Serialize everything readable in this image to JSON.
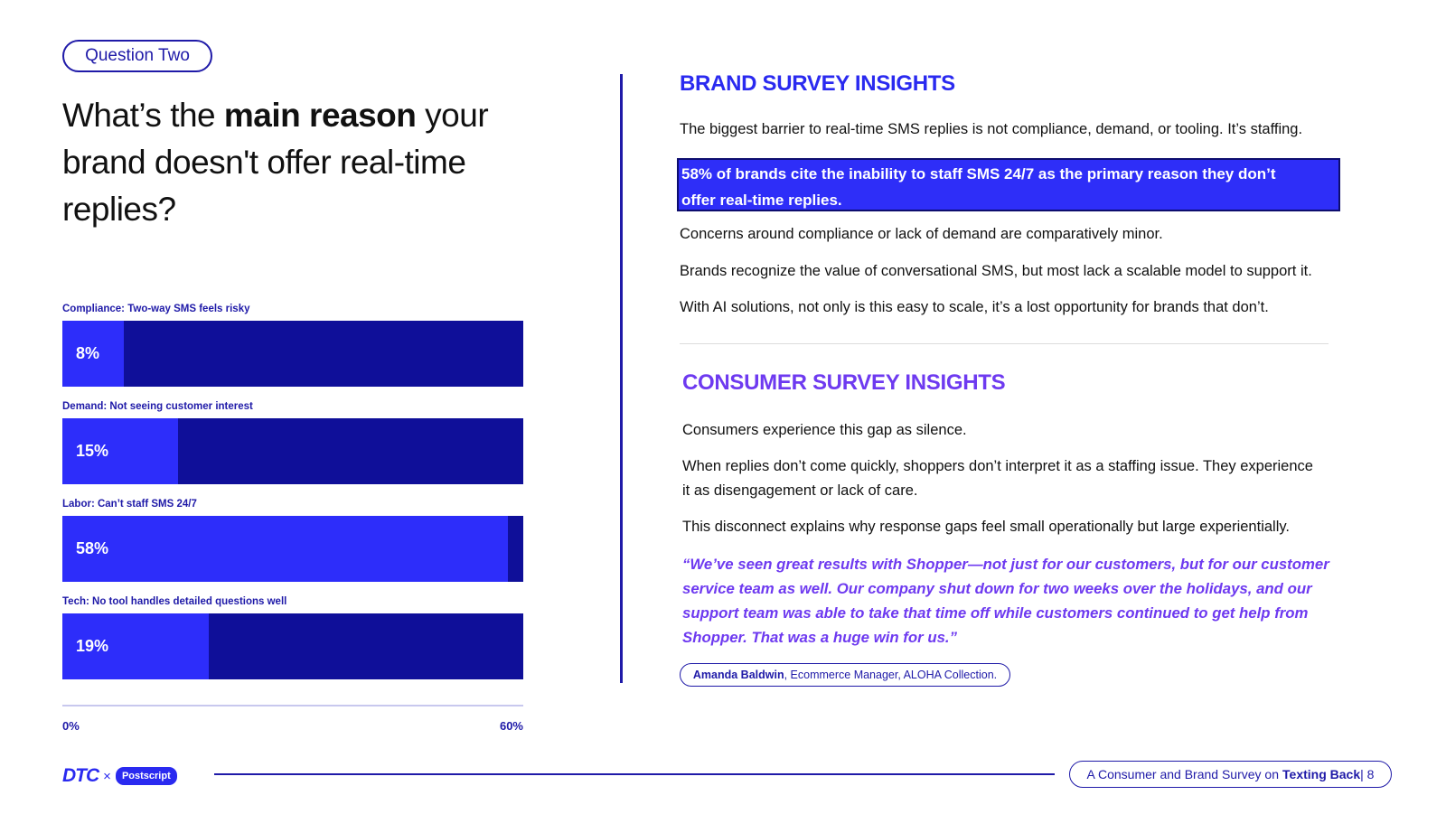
{
  "question": {
    "pill": "Question Two",
    "text_before": "What’s the ",
    "text_bold": "main reason",
    "text_after": " your brand doesn't offer real-time replies?"
  },
  "chart_data": {
    "type": "bar",
    "orientation": "horizontal",
    "categories": [
      "Compliance: Two-way SMS feels risky",
      "Demand: Not seeing customer interest",
      "Labor: Can’t staff SMS 24/7",
      "Tech: No tool handles detailed questions well"
    ],
    "values": [
      8,
      15,
      58,
      19
    ],
    "value_labels": [
      "8%",
      "15%",
      "58%",
      "19%"
    ],
    "xlim": [
      0,
      60
    ],
    "x_tick_labels": [
      "0%",
      "60%"
    ],
    "title": "",
    "xlabel": "",
    "ylabel": "",
    "grid": false
  },
  "brand": {
    "heading": "BRAND SURVEY INSIGHTS",
    "paragraph1": "The biggest barrier to real-time SMS replies is not compliance, demand, or tooling. It’s staffing.",
    "highlight_line1": "58% of brands cite the inability to staff SMS 24/7 as the primary reason they don’t",
    "highlight_line2": "offer real-time replies.",
    "paragraph2": "Concerns around compliance or lack of demand are comparatively minor.",
    "paragraph3": "Brands recognize the value of conversational SMS, but most lack a scalable model to support it.",
    "paragraph4": "With AI solutions, not only is this easy to scale, it’s a lost opportunity for brands that don’t."
  },
  "consumer": {
    "heading": "CONSUMER SURVEY INSIGHTS",
    "paragraph1": "Consumers experience this gap as silence.",
    "paragraph2_line1": "When replies don’t come quickly, shoppers don’t interpret it as a staffing issue. They experience",
    "paragraph2_line2": "it as disengagement or lack of care.",
    "paragraph3": "This disconnect explains why response gaps feel small operationally but large experientially.",
    "quote": "“We’ve seen great results with Shopper—not just for our customers, but for our customer service team as well. Our company shut down for two weeks over the holidays, and our support team was able to take that time off while customers continued to get help from Shopper. That was a huge win for us.”",
    "attribution_name": "Amanda Baldwin",
    "attribution_role": ", Ecommerce Manager, ALOHA Collection."
  },
  "footer": {
    "logo_dtc": "DTC",
    "logo_x": "×",
    "logo_postscript": "Postscript",
    "pill_text": "A Consumer and Brand Survey on",
    "pill_bold": "Texting Back",
    "pill_page": " | 8"
  },
  "colors": {
    "accent_blue": "#2a2af0",
    "bar_dark": "#0f0f99",
    "bar_fill": "#2d2dfa",
    "accent_purple": "#6e3af0"
  }
}
